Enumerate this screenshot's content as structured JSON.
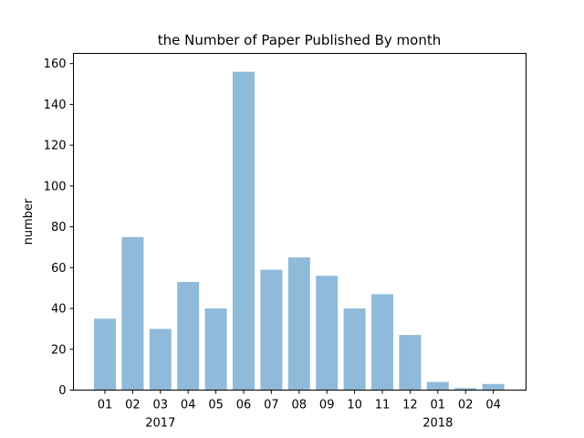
{
  "chart_data": {
    "type": "bar",
    "title": "the Number of Paper Published By month",
    "xlabel": "",
    "ylabel": "number",
    "categories": [
      "01",
      "02",
      "03",
      "04",
      "05",
      "06",
      "07",
      "08",
      "09",
      "10",
      "11",
      "12",
      "01",
      "02",
      "04"
    ],
    "year_labels": [
      {
        "label": "2017",
        "under_category_index": 2
      },
      {
        "label": "2018",
        "under_category_index": 12
      }
    ],
    "values": [
      35,
      75,
      30,
      53,
      40,
      156,
      59,
      65,
      56,
      40,
      47,
      27,
      4,
      1,
      3
    ],
    "ylim": [
      0,
      165
    ],
    "yticks": [
      0,
      20,
      40,
      60,
      80,
      100,
      120,
      140,
      160
    ],
    "bar_color": "#8fbad9",
    "grid": false,
    "legend": "none"
  }
}
